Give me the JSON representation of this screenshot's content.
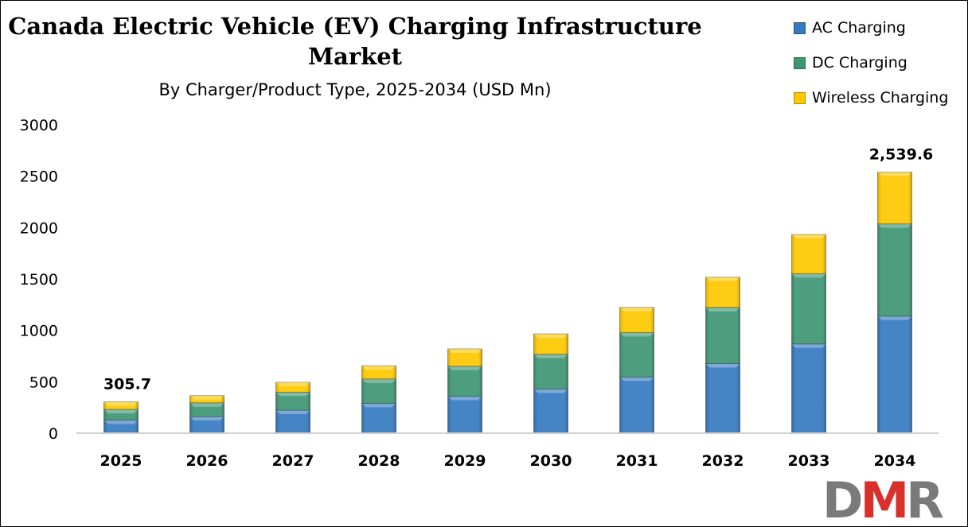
{
  "chart_data": {
    "type": "bar",
    "stacked": true,
    "title_line1": "Canada Electric Vehicle (EV) Charging Infrastructure",
    "title_line2": "Market",
    "subtitle": "By Charger/Product Type, 2025-2034 (USD Mn)",
    "categories": [
      "2025",
      "2026",
      "2027",
      "2028",
      "2029",
      "2030",
      "2031",
      "2032",
      "2033",
      "2034"
    ],
    "series": [
      {
        "name": "AC Charging",
        "color": "#3579C0",
        "values": [
          128,
          162,
          224,
          291,
          360,
          430,
          546,
          677,
          868,
          1139
        ]
      },
      {
        "name": "DC Charging",
        "color": "#3E9673",
        "values": [
          104,
          134,
          175,
          237,
          292,
          338,
          433,
          547,
          683,
          897
        ]
      },
      {
        "name": "Wireless Charging",
        "color": "#FFC800",
        "values": [
          73.7,
          70,
          96,
          129,
          168,
          198,
          245,
          294,
          382,
          503.6
        ]
      }
    ],
    "data_labels": [
      {
        "category": "2025",
        "text": "305.7"
      },
      {
        "category": "2034",
        "text": "2,539.6"
      }
    ],
    "ylim": [
      0,
      3000
    ],
    "yticks": [
      "0",
      "500",
      "1000",
      "1500",
      "2000",
      "2500",
      "3000"
    ],
    "grid": false,
    "legend": "top-right"
  },
  "logo": {
    "text": "DMR",
    "colors": [
      "#7A7A7A",
      "#D9302C"
    ]
  }
}
